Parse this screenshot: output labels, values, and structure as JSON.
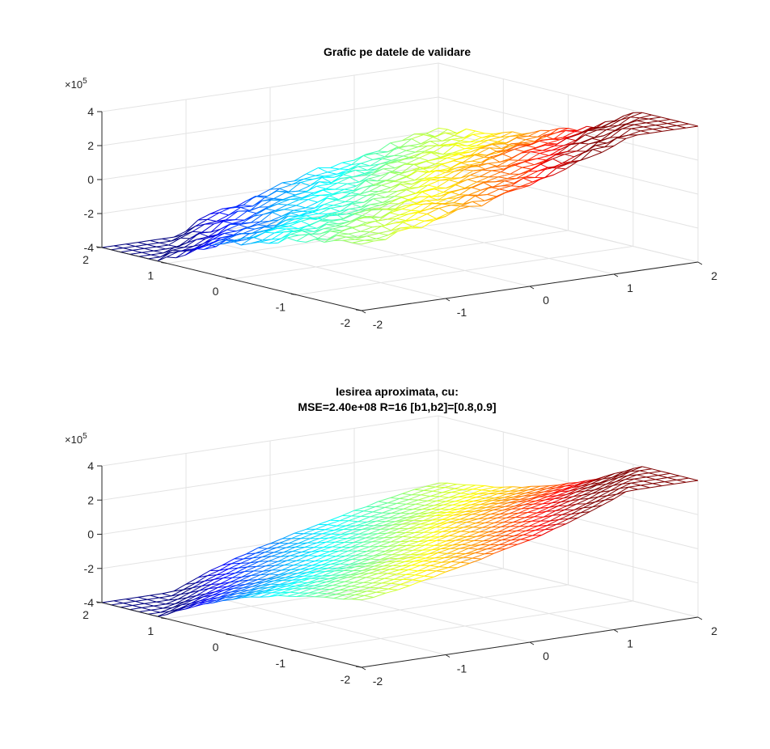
{
  "figure": {
    "background": "#ffffff",
    "axis_color": "#262626",
    "grid_color": "#e3e3e3"
  },
  "chart_data": [
    {
      "type": "surface-mesh",
      "title_lines": [
        "Grafic pe datele de validare"
      ],
      "x_ticks": [
        "-2",
        "-1",
        "0",
        "1",
        "2"
      ],
      "y_ticks": [
        "-2",
        "-1",
        "0",
        "1",
        "2"
      ],
      "z_ticks": [
        "-4",
        "-2",
        "0",
        "2",
        "4"
      ],
      "z_multiplier": "×10",
      "z_multiplier_exp": "5",
      "xlim": [
        -2,
        2
      ],
      "ylim": [
        -2,
        2
      ],
      "zlim": [
        -400000,
        400000
      ],
      "grid": true,
      "colormap": "jet",
      "noise": 18000,
      "surface_model": "z(x,y) ≈ 100000·(x − y)·(1 − 0.12·x·y)"
    },
    {
      "type": "surface-mesh",
      "title_lines": [
        "Iesirea aproximata, cu:",
        "MSE=2.40e+08 R=16 [b1,b2]=[0.8,0.9]"
      ],
      "x_ticks": [
        "-2",
        "-1",
        "0",
        "1",
        "2"
      ],
      "y_ticks": [
        "-2",
        "-1",
        "0",
        "1",
        "2"
      ],
      "z_ticks": [
        "-4",
        "-2",
        "0",
        "2",
        "4"
      ],
      "z_multiplier": "×10",
      "z_multiplier_exp": "5",
      "xlim": [
        -2,
        2
      ],
      "ylim": [
        -2,
        2
      ],
      "zlim": [
        -400000,
        400000
      ],
      "grid": true,
      "colormap": "jet",
      "noise": 3500,
      "mse": "2.40e+08",
      "R": 16,
      "b1_b2": [
        0.8,
        0.9
      ],
      "surface_model": "z(x,y) ≈ 100000·(x − y)·(1 − 0.12·x·y)"
    }
  ]
}
